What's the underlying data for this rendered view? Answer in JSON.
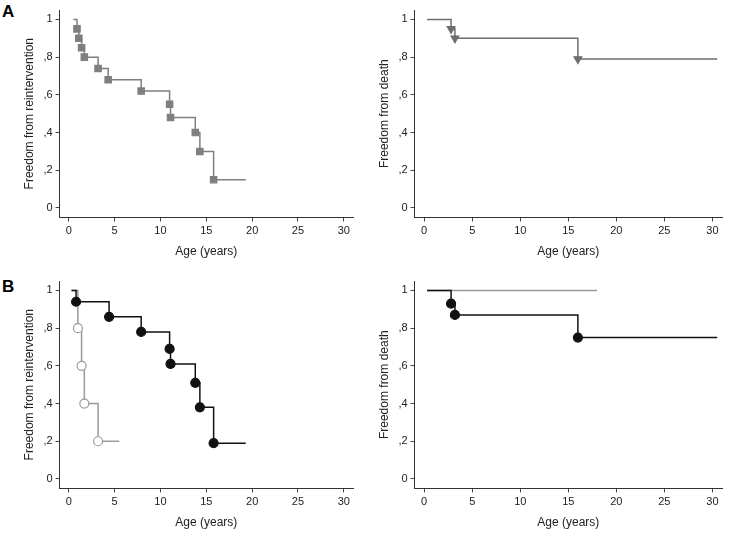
{
  "chart_data": [
    {
      "type": "line",
      "annotation": "A",
      "xlabel": "Age (years)",
      "ylabel": "Freedom from reintervention",
      "xlim": [
        -1,
        31
      ],
      "xticks": [
        0,
        5,
        10,
        15,
        20,
        25,
        30
      ],
      "ylim": [
        -0.05,
        1.05
      ],
      "yticks": [
        0,
        {
          "value": 0.2,
          "label": ",2"
        },
        {
          "value": 0.4,
          "label": ",4"
        },
        {
          "value": 0.6,
          "label": ",6"
        },
        {
          "value": 0.8,
          "label": ",8"
        },
        1
      ],
      "grid": false,
      "series": [
        {
          "color": "#7f7f7f",
          "marker": "square",
          "x": [
            0.5,
            0.9,
            1.1,
            1.4,
            1.7,
            3.2,
            4.3,
            7.9,
            11.0,
            11.1,
            13.8,
            14.3,
            15.8,
            19.3
          ],
          "values": [
            1,
            0.95,
            0.9,
            0.85,
            0.8,
            0.74,
            0.68,
            0.62,
            0.55,
            0.48,
            0.4,
            0.3,
            0.15,
            0.15
          ]
        }
      ]
    },
    {
      "type": "line",
      "xlabel": "Age (years)",
      "ylabel": "Freedom from death",
      "xlim": [
        -1,
        31
      ],
      "xticks": [
        0,
        5,
        10,
        15,
        20,
        25,
        30
      ],
      "ylim": [
        -0.05,
        1.05
      ],
      "yticks": [
        0,
        {
          "value": 0.2,
          "label": ",2"
        },
        {
          "value": 0.4,
          "label": ",4"
        },
        {
          "value": 0.6,
          "label": ",6"
        },
        {
          "value": 0.8,
          "label": ",8"
        },
        1
      ],
      "grid": false,
      "series": [
        {
          "color": "#6e6e6e",
          "marker": "triangle_down",
          "x": [
            0.3,
            2.8,
            3.2,
            16.0,
            30.5
          ],
          "values": [
            1,
            0.95,
            0.9,
            0.79,
            0.79
          ]
        }
      ]
    },
    {
      "type": "line",
      "annotation": "B",
      "xlabel": "Age (years)",
      "ylabel": "Freedom from reintervention",
      "xlim": [
        -1,
        31
      ],
      "xticks": [
        0,
        5,
        10,
        15,
        20,
        25,
        30
      ],
      "ylim": [
        -0.05,
        1.05
      ],
      "yticks": [
        0,
        {
          "value": 0.2,
          "label": ",2"
        },
        {
          "value": 0.4,
          "label": ",4"
        },
        {
          "value": 0.6,
          "label": ",6"
        },
        {
          "value": 0.8,
          "label": ",8"
        },
        1
      ],
      "grid": false,
      "series": [
        {
          "color": "#111111",
          "marker": "circle",
          "x": [
            0.3,
            0.8,
            4.4,
            7.9,
            11.0,
            11.1,
            13.8,
            14.3,
            15.8,
            19.3
          ],
          "values": [
            1,
            0.94,
            0.86,
            0.78,
            0.69,
            0.61,
            0.51,
            0.38,
            0.19,
            0.19
          ]
        },
        {
          "color": "#9a9a9a",
          "marker": "open_circle",
          "x": [
            0.3,
            1.0,
            1.4,
            1.7,
            3.2,
            5.5
          ],
          "values": [
            1,
            0.8,
            0.6,
            0.4,
            0.2,
            0.2
          ]
        }
      ]
    },
    {
      "type": "line",
      "xlabel": "Age (years)",
      "ylabel": "Freedom from death",
      "xlim": [
        -1,
        31
      ],
      "xticks": [
        0,
        5,
        10,
        15,
        20,
        25,
        30
      ],
      "ylim": [
        -0.05,
        1.05
      ],
      "yticks": [
        0,
        {
          "value": 0.2,
          "label": ",2"
        },
        {
          "value": 0.4,
          "label": ",4"
        },
        {
          "value": 0.6,
          "label": ",6"
        },
        {
          "value": 0.8,
          "label": ",8"
        },
        1
      ],
      "grid": false,
      "series": [
        {
          "color": "#111111",
          "marker": "circle",
          "x": [
            0.3,
            2.8,
            3.2,
            16.0,
            30.5
          ],
          "values": [
            1,
            0.93,
            0.87,
            0.75,
            0.75
          ]
        },
        {
          "color": "#9a9a9a",
          "marker": "none",
          "x": [
            0.3,
            18.0
          ],
          "values": [
            1,
            1
          ]
        }
      ]
    }
  ]
}
